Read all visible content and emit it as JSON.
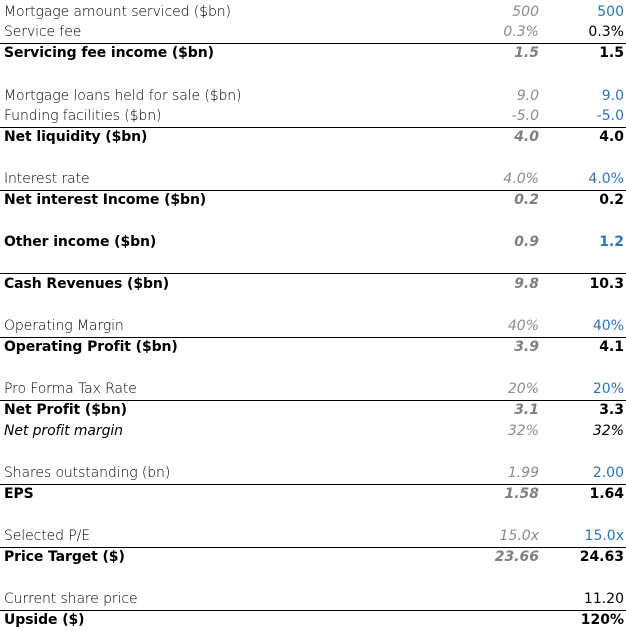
{
  "rows": [
    {
      "label": "Mortgage amount serviced ($bn)",
      "c1": "500",
      "c2": "500"
    },
    {
      "label": "Service fee",
      "c1": "0.3%",
      "c2": "0.3%"
    },
    {
      "label": "Servicing fee income ($bn)",
      "c1": "1.5",
      "c2": "1.5"
    },
    {
      "label": "Mortgage loans held for sale ($bn)",
      "c1": "9.0",
      "c2": "9.0"
    },
    {
      "label": "Funding facilities ($bn)",
      "c1": "-5.0",
      "c2": "-5.0"
    },
    {
      "label": "Net liquidity ($bn)",
      "c1": "4.0",
      "c2": "4.0"
    },
    {
      "label": "Interest rate",
      "c1": "4.0%",
      "c2": "4.0%"
    },
    {
      "label": "Net interest Income ($bn)",
      "c1": "0.2",
      "c2": "0.2"
    },
    {
      "label": "Other income ($bn)",
      "c1": "0.9",
      "c2": "1.2"
    },
    {
      "label": "Cash Revenues ($bn)",
      "c1": "9.8",
      "c2": "10.3"
    },
    {
      "label": "Operating Margin",
      "c1": "40%",
      "c2": "40%"
    },
    {
      "label": "Operating Profit ($bn)",
      "c1": "3.9",
      "c2": "4.1"
    },
    {
      "label": "Pro Forma Tax Rate",
      "c1": "20%",
      "c2": "20%"
    },
    {
      "label": "Net Profit ($bn)",
      "c1": "3.1",
      "c2": "3.3"
    },
    {
      "label": "Net profit margin",
      "c1": "32%",
      "c2": "32%"
    },
    {
      "label": "Shares outstanding (bn)",
      "c1": "1.99",
      "c2": "2.00"
    },
    {
      "label": "EPS",
      "c1": "1.58",
      "c2": "1.64"
    },
    {
      "label": "Selected P/E",
      "c1": "15.0x",
      "c2": "15.0x"
    },
    {
      "label": "Price Target ($)",
      "c1": "23.66",
      "c2": "24.63"
    },
    {
      "label": "Current share price",
      "c1": "",
      "c2": "11.20"
    },
    {
      "label": "Upside ($)",
      "c1": "",
      "c2": "120%"
    }
  ]
}
